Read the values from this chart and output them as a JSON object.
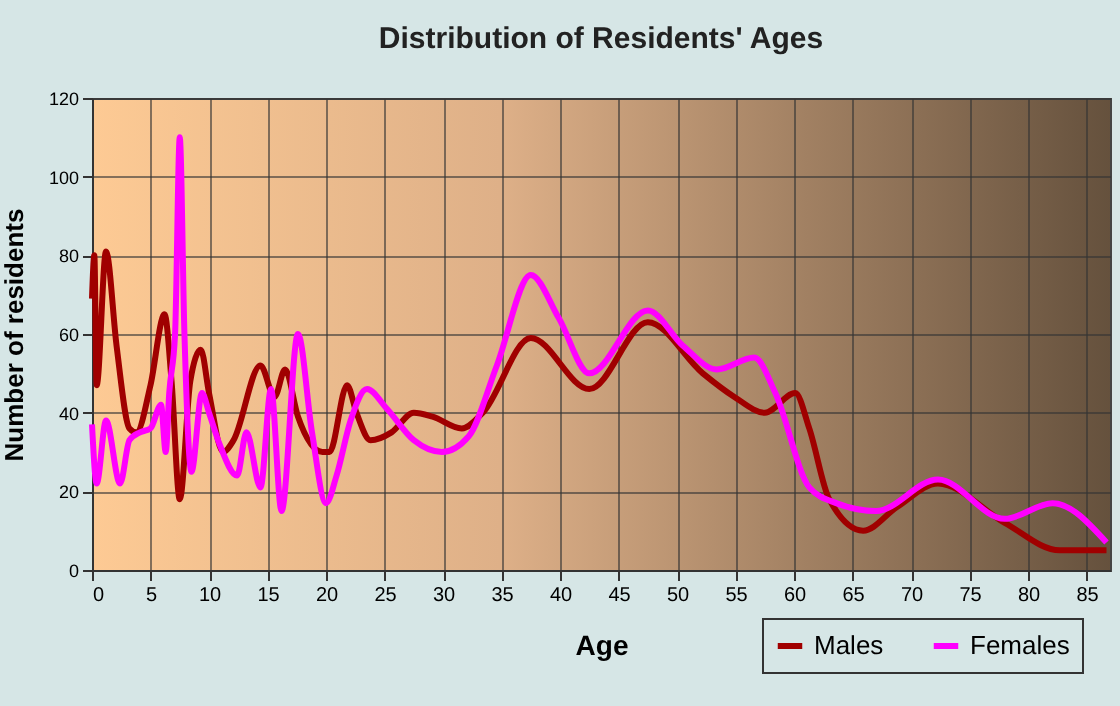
{
  "chart_data": {
    "type": "line",
    "title": "Distribution of Residents' Ages",
    "xlabel": "Age",
    "ylabel": "Number of residents",
    "xlim": [
      0,
      87
    ],
    "xticks": [
      0,
      5,
      10,
      15,
      20,
      25,
      30,
      35,
      40,
      45,
      50,
      55,
      60,
      65,
      70,
      75,
      80,
      85
    ],
    "ylim": [
      0,
      120
    ],
    "yticks": [
      0,
      20,
      40,
      60,
      80,
      100,
      120
    ],
    "grid": true,
    "legend": "bottom right",
    "series": [
      {
        "name": "Males",
        "color": "#a00000",
        "x": [
          0,
          0.2,
          0.4,
          1.2,
          2.1,
          3.2,
          3.8,
          5,
          6.2,
          6.8,
          7.5,
          8.4,
          9.3,
          10,
          11.2,
          12.1,
          14.4,
          15.6,
          16.5,
          17.6,
          19.7,
          20.3,
          21.8,
          22.6,
          23.8,
          25.6,
          27.5,
          29.1,
          31.6,
          33.4,
          37.5,
          42.5,
          47.5,
          52.2,
          54.9,
          57.5,
          60.1,
          61.3,
          63,
          65.9,
          68.8,
          72.3,
          78,
          82.7,
          86.7
        ],
        "values": [
          69,
          80,
          47,
          81,
          57,
          36,
          35,
          47,
          65,
          48,
          18,
          48,
          56,
          45,
          30,
          33,
          52,
          44,
          51,
          39,
          30,
          30,
          47,
          40,
          33,
          35,
          40,
          39,
          36,
          40,
          59,
          46,
          63,
          50,
          44,
          40,
          45,
          36,
          18,
          10,
          16,
          22,
          12,
          5,
          5
        ]
      },
      {
        "name": "Females",
        "color": "#ff00ff",
        "x": [
          0,
          0.4,
          1.2,
          2.4,
          3.2,
          4.1,
          5,
          5.9,
          6.3,
          6.6,
          7.1,
          7.5,
          7.9,
          8.5,
          9.4,
          10,
          10.9,
          12.4,
          13.2,
          14.4,
          15.3,
          16.2,
          17.6,
          18.8,
          20,
          20.9,
          22.1,
          23.5,
          25.2,
          27.5,
          29.9,
          32.2,
          34.6,
          37.5,
          39.9,
          42.5,
          47.5,
          50.5,
          53.4,
          56.6,
          58.4,
          61.3,
          63.6,
          67,
          72.3,
          78,
          82.1,
          86.7
        ],
        "values": [
          37,
          22,
          38,
          22,
          33,
          35,
          36,
          42,
          30,
          45,
          60,
          110,
          60,
          25,
          45,
          40,
          32,
          24,
          35,
          21,
          46,
          15,
          60,
          35,
          17,
          24,
          38,
          46,
          41,
          33,
          30,
          34,
          52,
          75,
          64,
          50,
          66,
          57,
          51,
          54,
          45,
          21,
          17,
          15,
          23,
          13,
          17,
          7
        ]
      }
    ]
  }
}
